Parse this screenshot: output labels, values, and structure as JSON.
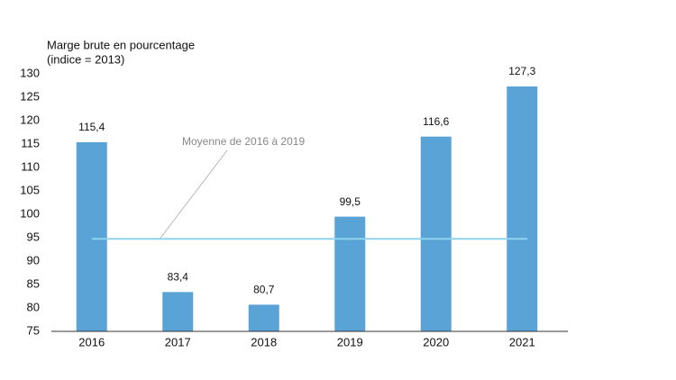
{
  "chart_data": {
    "type": "bar",
    "y_label": [
      "Marge brute en pourcentage",
      "(indice = 2013)"
    ],
    "categories": [
      "2016",
      "2017",
      "2018",
      "2019",
      "2020",
      "2021"
    ],
    "values": [
      115.4,
      83.4,
      80.7,
      99.5,
      116.6,
      127.3
    ],
    "value_labels": [
      "115,4",
      "83,4",
      "80,7",
      "99,5",
      "116,6",
      "127,3"
    ],
    "color": "#5aa3d6",
    "ylim": [
      75,
      130
    ],
    "yticks": [
      75,
      80,
      85,
      90,
      95,
      100,
      105,
      110,
      115,
      120,
      125,
      130
    ],
    "grid": false,
    "average": {
      "value": 94.75,
      "label": "Moyenne de 2016 à 2019",
      "color": "#8fd4ec"
    }
  }
}
